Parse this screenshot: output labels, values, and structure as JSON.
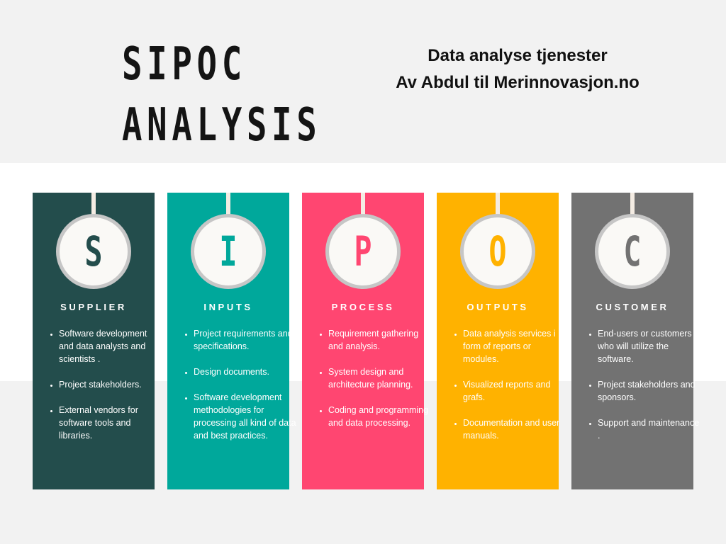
{
  "title": {
    "line1": "SIPOC",
    "line2": "ANALYSIS"
  },
  "subtitle": {
    "line1": "Data analyse tjenester",
    "line2": "Av Abdul til Merinnovasjon.no"
  },
  "columns": [
    {
      "letter": "S",
      "label": "SUPPLIER",
      "color": "#234d4c",
      "items": [
        "Software development and data analysts and scientists .",
        "Project stakeholders.",
        "External vendors for software tools and libraries."
      ]
    },
    {
      "letter": "I",
      "label": "INPUTS",
      "color": "#00a89b",
      "items": [
        "Project requirements and specifications.",
        "Design documents.",
        "Software development methodologies for processing all kind of data and best practices."
      ]
    },
    {
      "letter": "P",
      "label": "PROCESS",
      "color": "#ff4671",
      "items": [
        "Requirement gathering and analysis.",
        "System design and architecture planning.",
        "Coding and programming and data processing."
      ]
    },
    {
      "letter": "O",
      "label": "OUTPUTS",
      "color": "#ffb200",
      "items": [
        " Data analysis services i form of reports or modules.",
        "Visualized reports and grafs.",
        "Documentation and user manuals."
      ]
    },
    {
      "letter": "C",
      "label": "CUSTOMER",
      "color": "#727272",
      "items": [
        "End-users or customers who will utilize the software.",
        "Project stakeholders and sponsors.",
        "Support and maintenance ."
      ]
    }
  ]
}
